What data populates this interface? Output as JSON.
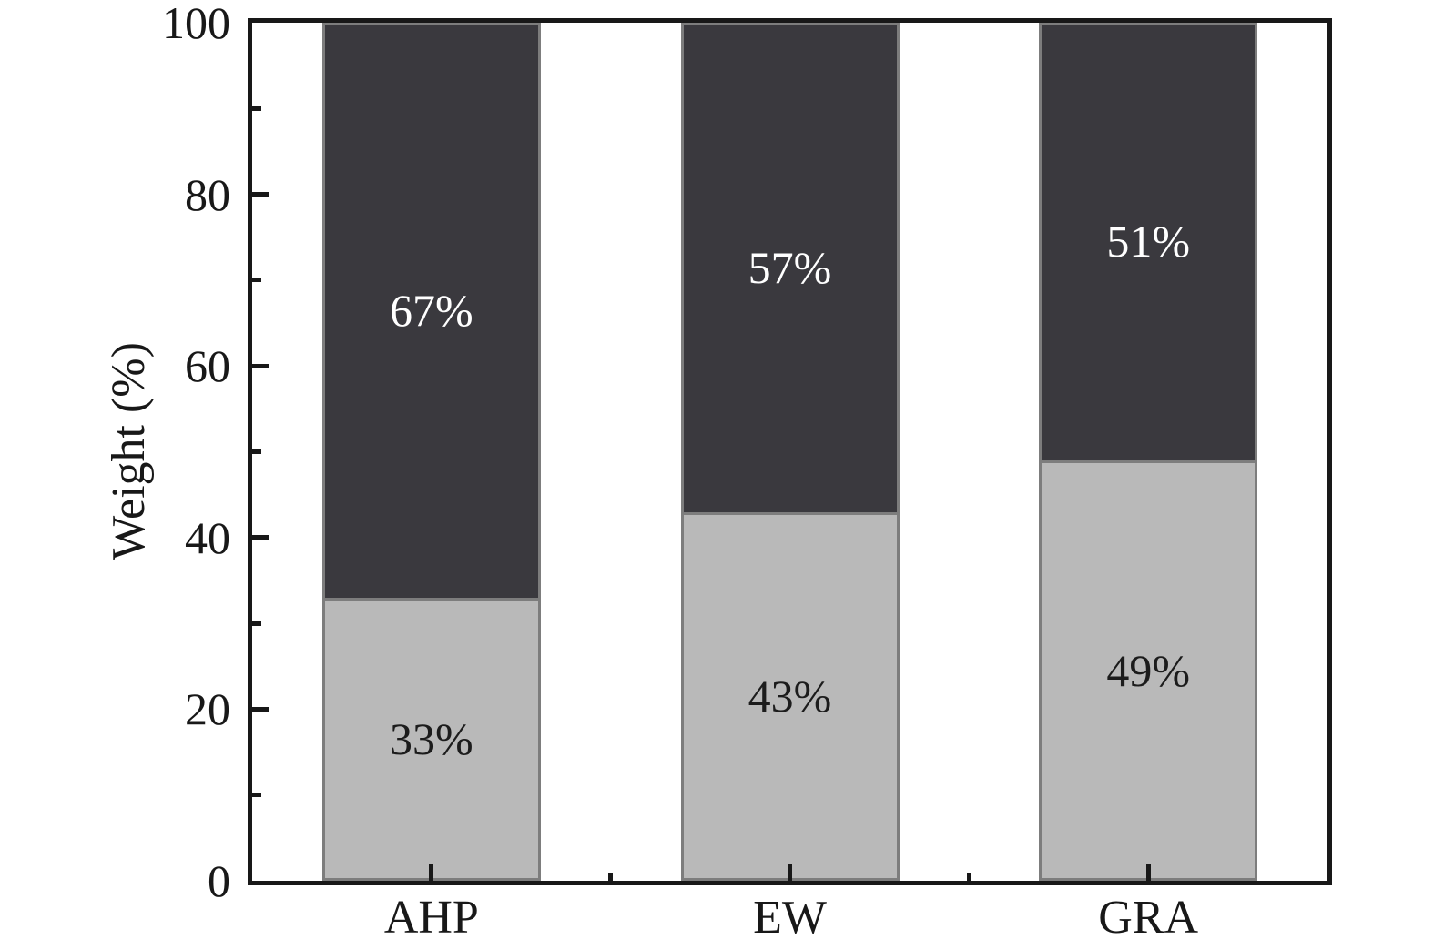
{
  "figure": {
    "background": "#ffffff"
  },
  "chart_data": {
    "type": "bar",
    "stacked": true,
    "orientation": "vertical",
    "title": "",
    "xlabel": "",
    "ylabel": "Weight (%)",
    "categories": [
      "AHP",
      "EW",
      "GRA"
    ],
    "series": [
      {
        "values": [
          33,
          43,
          49
        ],
        "labels": [
          "33%",
          "43%",
          "49%"
        ],
        "fill": "#b9b9b9",
        "label_color": "#1c1c1c"
      },
      {
        "values": [
          67,
          57,
          51
        ],
        "labels": [
          "67%",
          "57%",
          "51%"
        ],
        "fill": "#3a393e",
        "label_color": "#ffffff"
      }
    ],
    "ylim": [
      0,
      100
    ],
    "yticks_major": [
      0,
      20,
      40,
      60,
      80,
      100
    ],
    "ytick_labels": [
      "0",
      "20",
      "40",
      "60",
      "80",
      "100"
    ],
    "yticks_minor": [
      10,
      30,
      50,
      70,
      90
    ],
    "bar_edge_color": "#7d7d7d",
    "axis_color": "#181818",
    "grid": false,
    "legend_position": "none"
  }
}
